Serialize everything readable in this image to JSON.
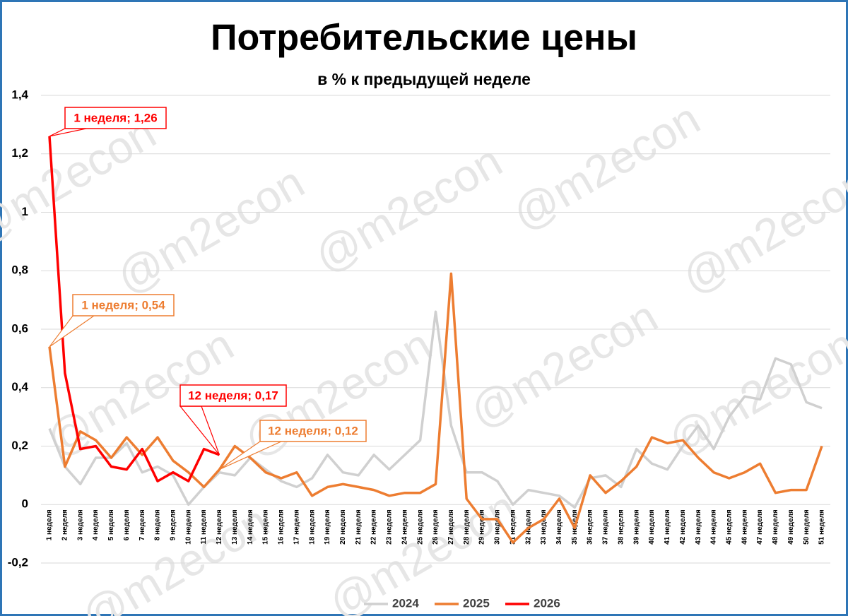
{
  "chart_data": {
    "type": "line",
    "title": "Потребительские цены",
    "subtitle": "в % к предыдущей неделе",
    "watermark": "@m2econ",
    "categories": [
      "1 неделя",
      "2 неделя",
      "3 неделя",
      "4 неделя",
      "5 неделя",
      "6 неделя",
      "7 неделя",
      "8 неделя",
      "9 неделя",
      "10 неделя",
      "11 неделя",
      "12 неделя",
      "13 неделя",
      "14 неделя",
      "15 неделя",
      "16 неделя",
      "17 неделя",
      "18 неделя",
      "19 неделя",
      "20 неделя",
      "21 неделя",
      "22 неделя",
      "23 неделя",
      "24 неделя",
      "25 неделя",
      "26 неделя",
      "27 неделя",
      "28 неделя",
      "29 неделя",
      "30 неделя",
      "31 неделя",
      "32 неделя",
      "33 неделя",
      "34 неделя",
      "35 неделя",
      "36 неделя",
      "37 неделя",
      "38 неделя",
      "39 неделя",
      "40 неделя",
      "41 неделя",
      "42 неделя",
      "43 неделя",
      "44 неделя",
      "45 неделя",
      "46 неделя",
      "47 неделя",
      "48 неделя",
      "49 неделя",
      "50 неделя",
      "51 неделя"
    ],
    "series": [
      {
        "name": "2024",
        "color": "#d0d0d0",
        "values": [
          0.26,
          0.13,
          0.07,
          0.16,
          0.16,
          0.21,
          0.11,
          0.13,
          0.1,
          0.0,
          0.06,
          0.11,
          0.1,
          0.16,
          0.12,
          0.08,
          0.06,
          0.09,
          0.17,
          0.11,
          0.1,
          0.17,
          0.12,
          0.17,
          0.22,
          0.66,
          0.27,
          0.11,
          0.11,
          0.08,
          0.0,
          0.05,
          0.04,
          0.03,
          -0.01,
          0.09,
          0.1,
          0.06,
          0.19,
          0.14,
          0.12,
          0.2,
          0.27,
          0.19,
          0.3,
          0.37,
          0.36,
          0.5,
          0.48,
          0.35,
          0.33
        ]
      },
      {
        "name": "2025",
        "color": "#ed7d31",
        "values": [
          0.54,
          0.13,
          0.25,
          0.22,
          0.16,
          0.23,
          0.17,
          0.23,
          0.15,
          0.11,
          0.06,
          0.12,
          0.2,
          0.16,
          0.11,
          0.09,
          0.11,
          0.03,
          0.06,
          0.07,
          0.06,
          0.05,
          0.03,
          0.04,
          0.04,
          0.07,
          0.79,
          0.02,
          -0.05,
          -0.05,
          -0.13,
          -0.08,
          -0.05,
          0.02,
          -0.08,
          0.1,
          0.04,
          0.08,
          0.13,
          0.23,
          0.21,
          0.22,
          0.16,
          0.11,
          0.09,
          0.11,
          0.14,
          0.04,
          0.05,
          0.05,
          0.2
        ]
      },
      {
        "name": "2026",
        "color": "#ff0000",
        "values": [
          1.26,
          0.45,
          0.19,
          0.2,
          0.13,
          0.12,
          0.19,
          0.08,
          0.11,
          0.08,
          0.19,
          0.17,
          null,
          null,
          null,
          null,
          null,
          null,
          null,
          null,
          null,
          null,
          null,
          null,
          null,
          null,
          null,
          null,
          null,
          null,
          null,
          null,
          null,
          null,
          null,
          null,
          null,
          null,
          null,
          null,
          null,
          null,
          null,
          null,
          null,
          null,
          null,
          null,
          null,
          null,
          null
        ]
      }
    ],
    "annotations": [
      "1 неделя; 1,26",
      "1 неделя; 0,54",
      "12 неделя; 0,17",
      "12 неделя; 0,12"
    ],
    "ylim": [
      -0.2,
      1.4
    ],
    "yticks": [
      {
        "value": -0.2,
        "label": "-0,2"
      },
      0,
      {
        "value": 0.2,
        "label": "0,2"
      },
      {
        "value": 0.4,
        "label": "0,4"
      },
      {
        "value": 0.6,
        "label": "0,6"
      },
      {
        "value": 0.8,
        "label": "0,8"
      },
      1,
      {
        "value": 1.2,
        "label": "1,2"
      },
      {
        "value": 1.4,
        "label": "1,4"
      }
    ],
    "grid": true,
    "legend": "bottom"
  }
}
